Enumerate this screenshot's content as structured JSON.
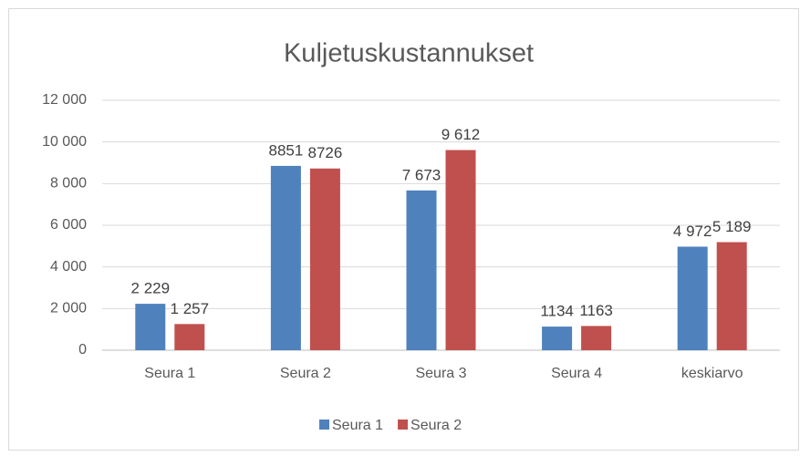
{
  "chart_data": {
    "type": "bar",
    "title": "Kuljetuskustannukset",
    "categories": [
      "Seura 1",
      "Seura 2",
      "Seura 3",
      "Seura 4",
      "keskiarvo"
    ],
    "series": [
      {
        "name": "Seura 1",
        "color": "#4f81bd",
        "values": [
          2229,
          8851,
          7673,
          1134,
          4972
        ],
        "value_labels": [
          "2 229",
          "8851",
          "7 673",
          "1134",
          "4 972"
        ]
      },
      {
        "name": "Seura 2",
        "color": "#c0504d",
        "values": [
          1257,
          8726,
          9612,
          1163,
          5189
        ],
        "value_labels": [
          "1 257",
          "8726",
          "9 612",
          "1163",
          "5 189"
        ]
      }
    ],
    "ylim": [
      0,
      12000
    ],
    "yticks": [
      0,
      {
        "value": 2000,
        "label": "2 000"
      },
      {
        "value": 4000,
        "label": "4 000"
      },
      {
        "value": 6000,
        "label": "6 000"
      },
      {
        "value": 8000,
        "label": "8 000"
      },
      {
        "value": 10000,
        "label": "10 000"
      },
      {
        "value": 12000,
        "label": "12 000"
      }
    ],
    "grid": true,
    "legend": "bottom"
  }
}
